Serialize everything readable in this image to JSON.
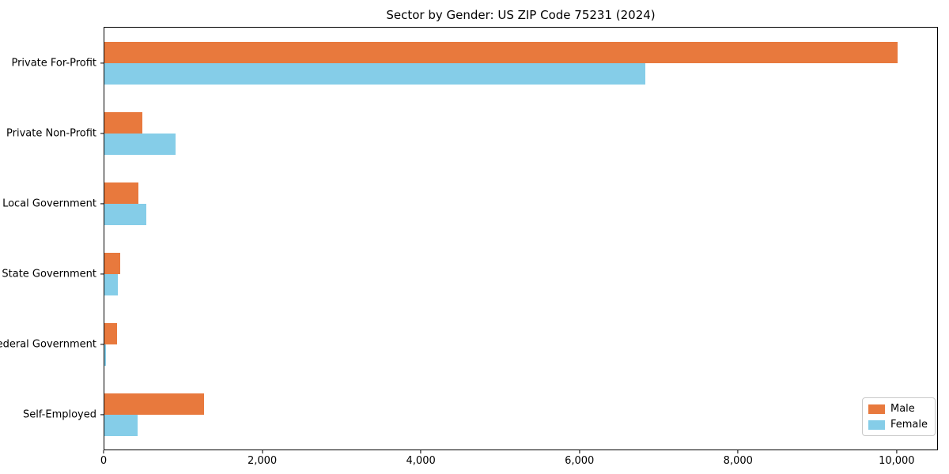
{
  "title": "Sector by Gender: US ZIP Code 75231 (2024)",
  "chart_data": {
    "type": "bar",
    "orientation": "horizontal",
    "title": "Sector by Gender: US ZIP Code 75231 (2024)",
    "xlabel": "",
    "ylabel": "",
    "categories": [
      "Private For-Profit",
      "Private Non-Profit",
      "Local Government",
      "State Government",
      "Federal Government",
      "Self-Employed"
    ],
    "series": [
      {
        "name": "Male",
        "color": "#e8793d",
        "values": [
          10020,
          480,
          430,
          195,
          155,
          1260
        ]
      },
      {
        "name": "Female",
        "color": "#85cde8",
        "values": [
          6830,
          895,
          530,
          165,
          20,
          415
        ]
      }
    ],
    "xlim": [
      0,
      10520
    ],
    "xticks": [
      {
        "value": 0,
        "label": "0"
      },
      {
        "value": 2000,
        "label": "2,000"
      },
      {
        "value": 4000,
        "label": "4,000"
      },
      {
        "value": 6000,
        "label": "6,000"
      },
      {
        "value": 8000,
        "label": "8,000"
      },
      {
        "value": 10000,
        "label": "10,000"
      }
    ],
    "grid": false,
    "legend": {
      "position": "lower right",
      "entries": [
        "Male",
        "Female"
      ]
    }
  }
}
